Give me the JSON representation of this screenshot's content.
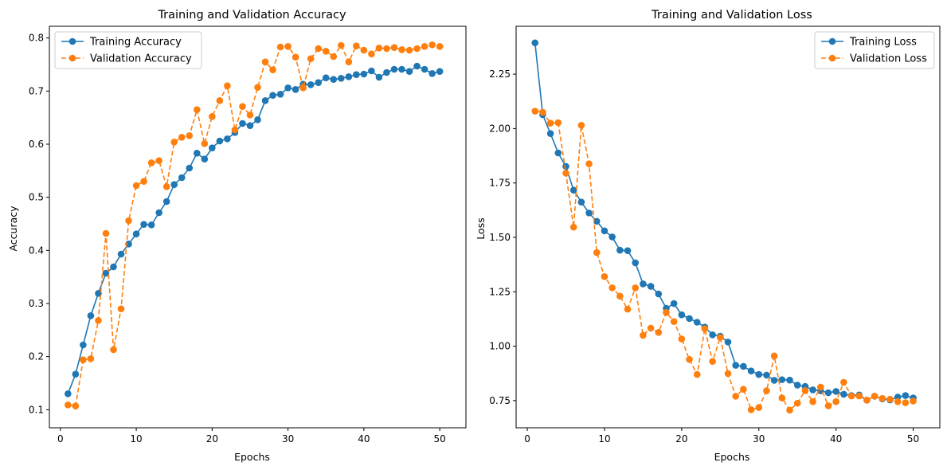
{
  "chart_data": [
    {
      "type": "line",
      "title": "Training and Validation Accuracy",
      "xlabel": "Epochs",
      "ylabel": "Accuracy",
      "xlim": [
        -1.45,
        53.45
      ],
      "ylim": [
        0.066,
        0.822
      ],
      "xticks": [
        0,
        10,
        20,
        30,
        40,
        50
      ],
      "yticks": [
        0.1,
        0.2,
        0.3,
        0.4,
        0.5,
        0.6,
        0.7,
        0.8
      ],
      "grid": false,
      "legend_position": "upper-left",
      "x": [
        1,
        2,
        3,
        4,
        5,
        6,
        7,
        8,
        9,
        10,
        11,
        12,
        13,
        14,
        15,
        16,
        17,
        18,
        19,
        20,
        21,
        22,
        23,
        24,
        25,
        26,
        27,
        28,
        29,
        30,
        31,
        32,
        33,
        34,
        35,
        36,
        37,
        38,
        39,
        40,
        41,
        42,
        43,
        44,
        45,
        46,
        47,
        48,
        49,
        50
      ],
      "series": [
        {
          "name": "Training Accuracy",
          "color": "#1f77b4",
          "style": "solid",
          "values": [
            0.13,
            0.167,
            0.222,
            0.277,
            0.319,
            0.357,
            0.369,
            0.393,
            0.412,
            0.431,
            0.449,
            0.448,
            0.471,
            0.492,
            0.524,
            0.537,
            0.555,
            0.583,
            0.572,
            0.593,
            0.606,
            0.61,
            0.622,
            0.639,
            0.635,
            0.646,
            0.682,
            0.692,
            0.694,
            0.706,
            0.703,
            0.713,
            0.712,
            0.716,
            0.725,
            0.722,
            0.724,
            0.727,
            0.731,
            0.732,
            0.738,
            0.726,
            0.735,
            0.741,
            0.741,
            0.737,
            0.747,
            0.741,
            0.733,
            0.737
          ]
        },
        {
          "name": "Validation Accuracy",
          "color": "#ff7f0e",
          "style": "dashed",
          "values": [
            0.109,
            0.107,
            0.194,
            0.196,
            0.268,
            0.432,
            0.213,
            0.29,
            0.456,
            0.522,
            0.53,
            0.565,
            0.569,
            0.52,
            0.604,
            0.613,
            0.616,
            0.665,
            0.601,
            0.652,
            0.682,
            0.71,
            0.627,
            0.671,
            0.655,
            0.707,
            0.755,
            0.74,
            0.783,
            0.784,
            0.764,
            0.706,
            0.761,
            0.78,
            0.775,
            0.765,
            0.786,
            0.755,
            0.785,
            0.777,
            0.77,
            0.781,
            0.78,
            0.782,
            0.778,
            0.777,
            0.78,
            0.784,
            0.787,
            0.784
          ]
        }
      ]
    },
    {
      "type": "line",
      "title": "Training and Validation Loss",
      "xlabel": "Epochs",
      "ylabel": "Loss",
      "xlim": [
        -1.45,
        53.45
      ],
      "ylim": [
        0.625,
        2.47
      ],
      "xticks": [
        0,
        10,
        20,
        30,
        40,
        50
      ],
      "yticks": [
        0.75,
        1.0,
        1.25,
        1.5,
        1.75,
        2.0,
        2.25
      ],
      "ytick_labels": [
        "0.75",
        "1.00",
        "1.25",
        "1.50",
        "1.75",
        "2.00",
        "2.25"
      ],
      "grid": false,
      "legend_position": "upper-right",
      "x": [
        1,
        2,
        3,
        4,
        5,
        6,
        7,
        8,
        9,
        10,
        11,
        12,
        13,
        14,
        15,
        16,
        17,
        18,
        19,
        20,
        21,
        22,
        23,
        24,
        25,
        26,
        27,
        28,
        29,
        30,
        31,
        32,
        33,
        34,
        35,
        36,
        37,
        38,
        39,
        40,
        41,
        42,
        43,
        44,
        45,
        46,
        47,
        48,
        49,
        50
      ],
      "series": [
        {
          "name": "Training Loss",
          "color": "#1f77b4",
          "style": "solid",
          "values": [
            2.394,
            2.064,
            1.977,
            1.888,
            1.826,
            1.717,
            1.662,
            1.612,
            1.574,
            1.53,
            1.502,
            1.441,
            1.439,
            1.383,
            1.286,
            1.275,
            1.24,
            1.174,
            1.196,
            1.144,
            1.127,
            1.11,
            1.088,
            1.052,
            1.046,
            1.019,
            0.912,
            0.907,
            0.886,
            0.87,
            0.867,
            0.843,
            0.846,
            0.844,
            0.821,
            0.815,
            0.799,
            0.795,
            0.786,
            0.792,
            0.779,
            0.773,
            0.776,
            0.752,
            0.77,
            0.758,
            0.753,
            0.766,
            0.773,
            0.762
          ]
        },
        {
          "name": "Validation Loss",
          "color": "#ff7f0e",
          "style": "dashed",
          "values": [
            2.08,
            2.075,
            2.025,
            2.027,
            1.795,
            1.547,
            2.015,
            1.838,
            1.43,
            1.32,
            1.268,
            1.23,
            1.17,
            1.268,
            1.05,
            1.083,
            1.063,
            1.155,
            1.113,
            1.033,
            0.939,
            0.87,
            1.08,
            0.93,
            1.04,
            0.874,
            0.77,
            0.802,
            0.708,
            0.718,
            0.795,
            0.955,
            0.762,
            0.706,
            0.738,
            0.796,
            0.745,
            0.812,
            0.726,
            0.745,
            0.834,
            0.771,
            0.771,
            0.752,
            0.77,
            0.76,
            0.756,
            0.745,
            0.74,
            0.748
          ]
        }
      ]
    }
  ]
}
